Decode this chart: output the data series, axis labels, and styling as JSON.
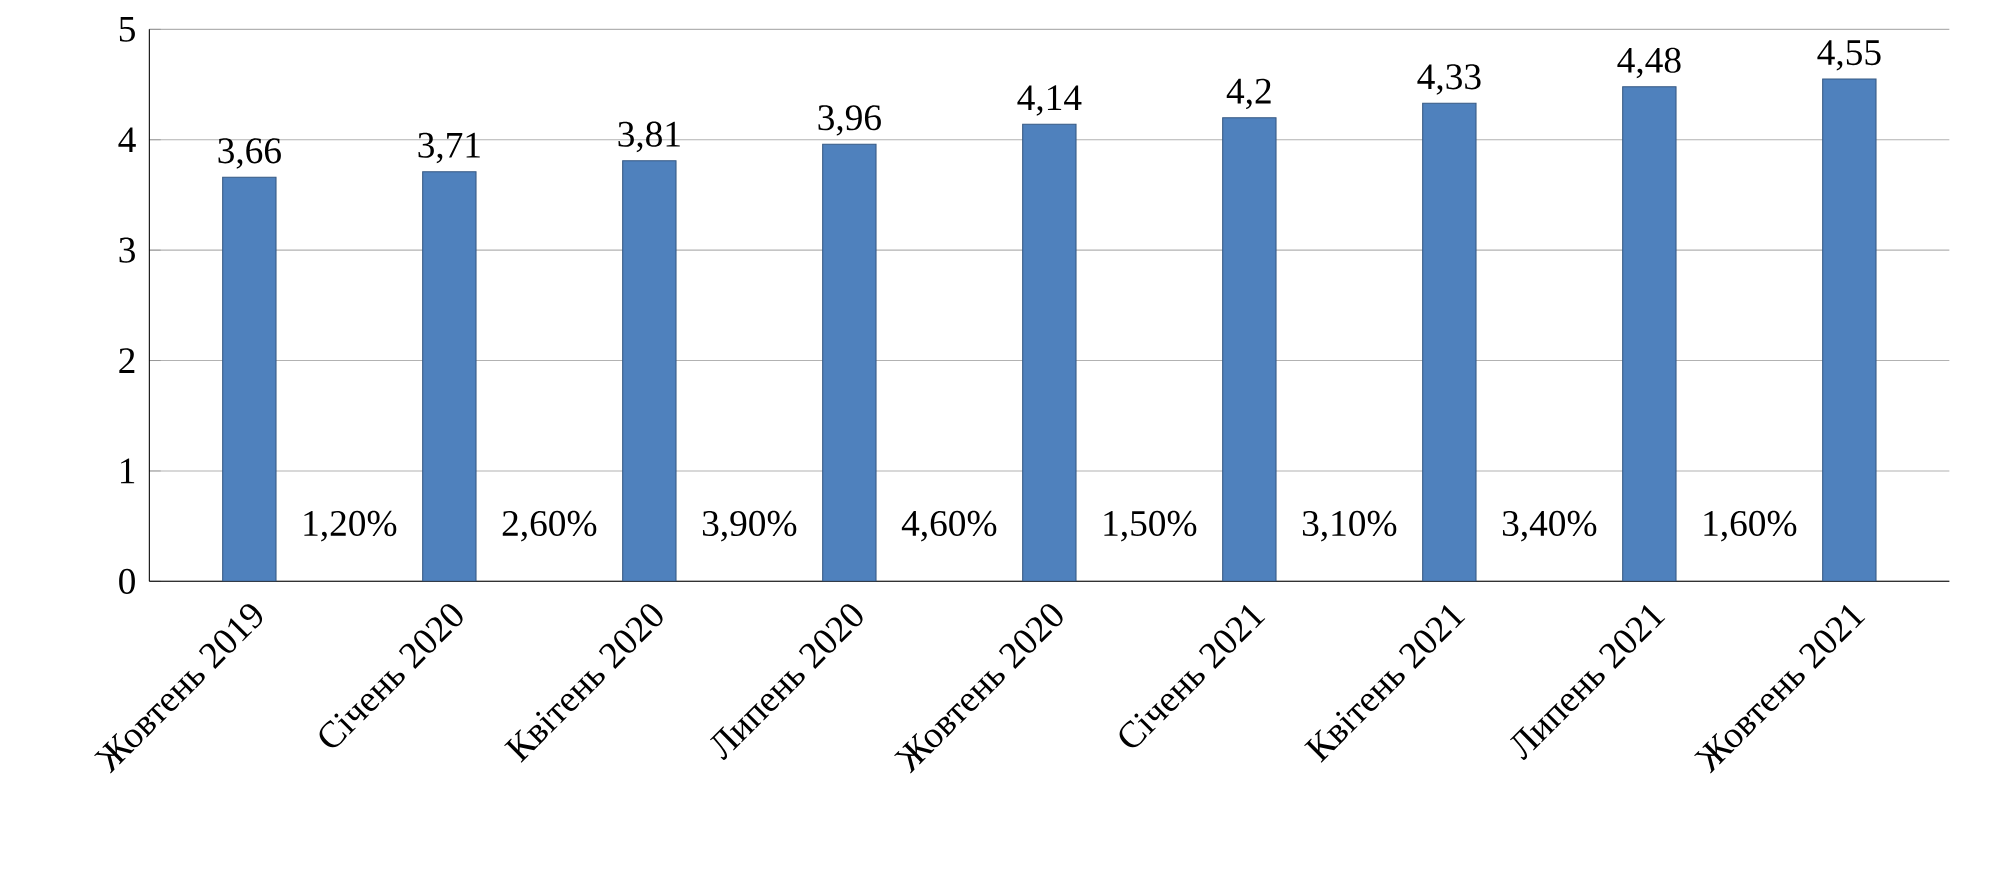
{
  "chart_data": {
    "type": "bar",
    "categories": [
      "Жовтень 2019",
      "Січень 2020",
      "Квітень 2020",
      "Липень 2020",
      "Жовтень 2020",
      "Січень 2021",
      "Квітень 2021",
      "Липень 2021",
      "Жовтень 2021"
    ],
    "values": [
      3.66,
      3.71,
      3.81,
      3.96,
      4.14,
      4.2,
      4.33,
      4.48,
      4.55
    ],
    "value_labels": [
      "3,66",
      "3,71",
      "3,81",
      "3,96",
      "4,14",
      "4,2",
      "4,33",
      "4,48",
      "4,55"
    ],
    "color": "#4f81bd",
    "ylim": [
      0,
      5
    ],
    "yticks": [
      0,
      1,
      2,
      3,
      4,
      5
    ],
    "grid": "y",
    "annotations": [
      "1,20%",
      "2,60%",
      "3,90%",
      "4,60%",
      "1,50%",
      "3,10%",
      "3,40%",
      "1,60%"
    ]
  }
}
